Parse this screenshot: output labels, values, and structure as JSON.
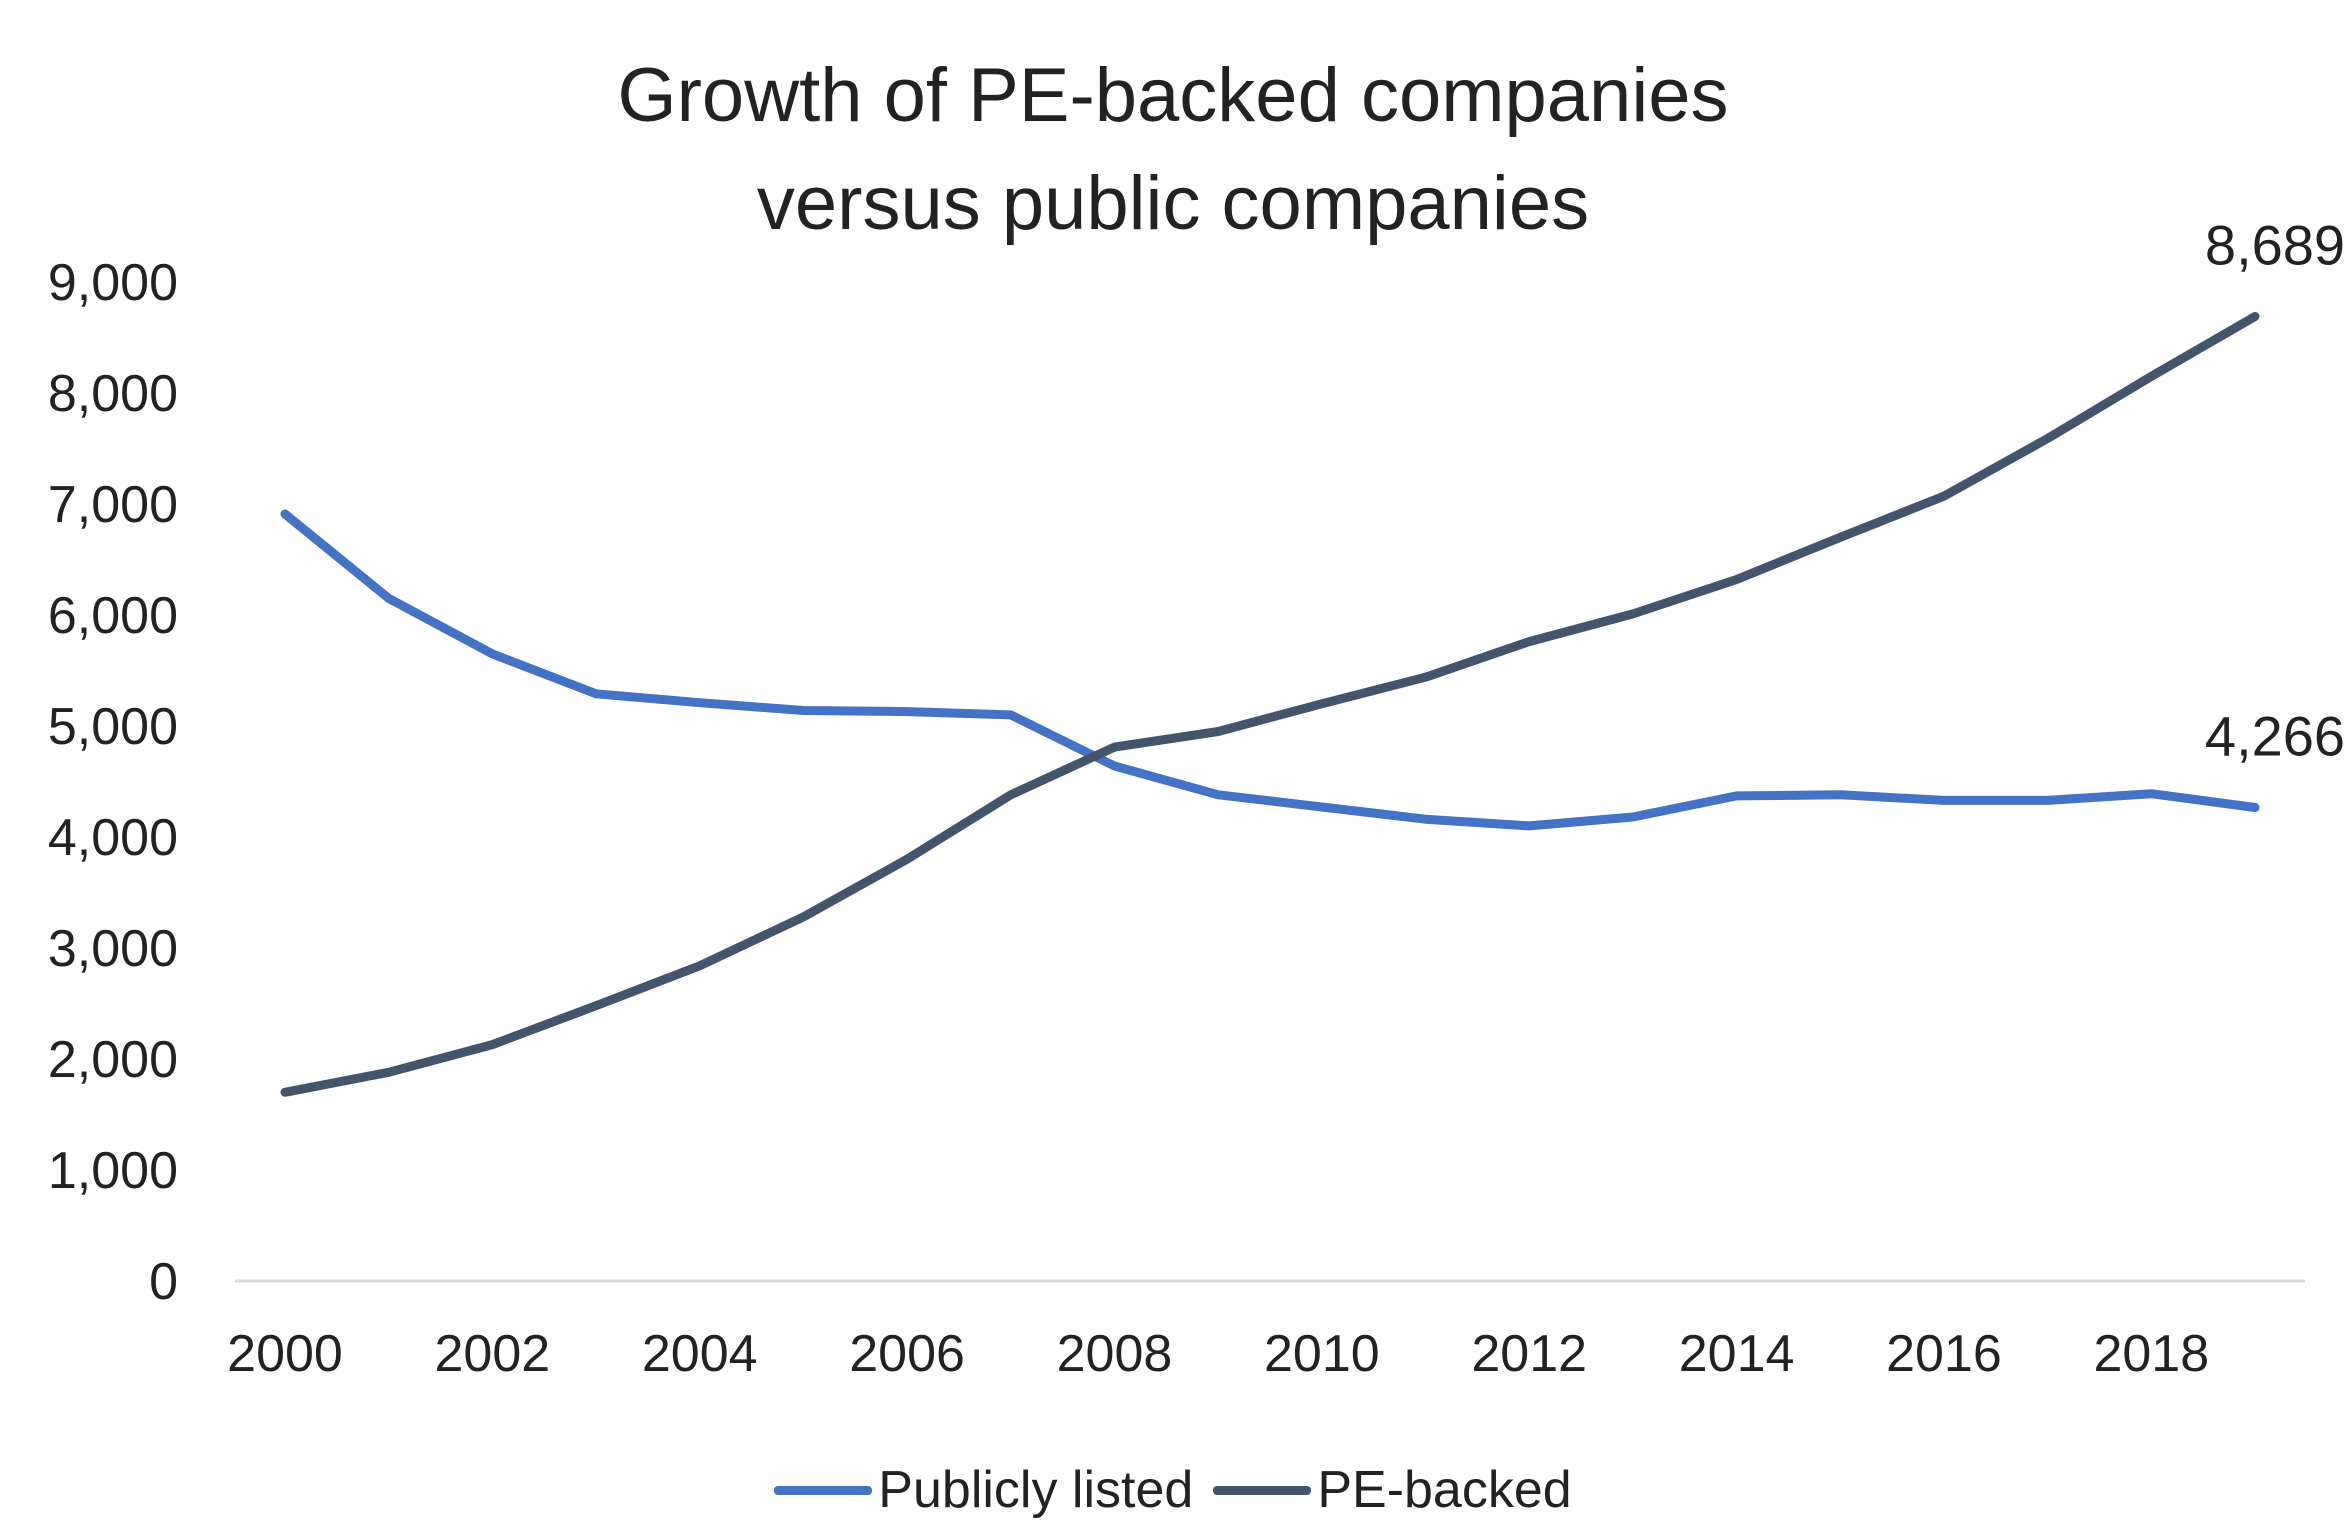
{
  "chart_data": {
    "type": "line",
    "title": [
      "Growth of PE-backed companies",
      "versus public companies"
    ],
    "xlabel": "",
    "ylabel": "",
    "x": [
      2000,
      2001,
      2002,
      2003,
      2004,
      2005,
      2006,
      2007,
      2008,
      2009,
      2010,
      2011,
      2012,
      2013,
      2014,
      2015,
      2016,
      2017,
      2018,
      2019
    ],
    "x_tick_labels": [
      "2000",
      "2002",
      "2004",
      "2006",
      "2008",
      "2010",
      "2012",
      "2014",
      "2016",
      "2018"
    ],
    "ylim": [
      0,
      9000
    ],
    "y_tick_labels": [
      "0",
      "1,000",
      "2,000",
      "3,000",
      "4,000",
      "5,000",
      "6,000",
      "7,000",
      "8,000",
      "9,000"
    ],
    "series": [
      {
        "name": "Publicly listed",
        "color": "#4472C4",
        "values": [
          6910,
          6150,
          5650,
          5290,
          5210,
          5140,
          5130,
          5100,
          4640,
          4380,
          4270,
          4160,
          4100,
          4180,
          4370,
          4380,
          4330,
          4330,
          4390,
          4266
        ]
      },
      {
        "name": "PE-backed",
        "color": "#44546A",
        "values": [
          1700,
          1880,
          2130,
          2480,
          2840,
          3280,
          3800,
          4380,
          4810,
          4950,
          5200,
          5440,
          5760,
          6010,
          6320,
          6700,
          7070,
          7590,
          8150,
          8689
        ]
      }
    ],
    "data_labels": [
      {
        "series": "PE-backed",
        "text": "8,689"
      },
      {
        "series": "Publicly listed",
        "text": "4,266"
      }
    ],
    "grid": false,
    "legend_position": "bottom"
  }
}
